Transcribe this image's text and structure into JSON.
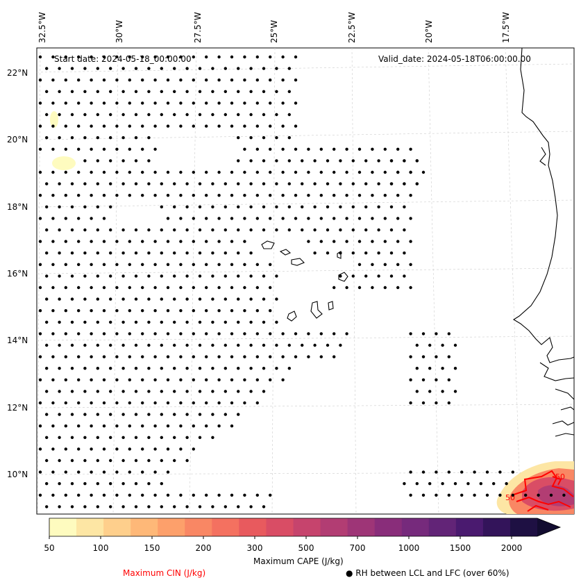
{
  "map": {
    "start_date": "Start date: 2024-05-18_00:00:00",
    "valid_date": "Valid_date: 2024-05-18T06:00:00.00",
    "lon_labels": [
      "32.5°W",
      "30°W",
      "27.5°W",
      "25°W",
      "22.5°W",
      "20°W",
      "17.5°W"
    ],
    "lat_labels": [
      "22°N",
      "20°N",
      "18°N",
      "16°N",
      "14°N",
      "12°N",
      "10°N"
    ],
    "contour_labels": [
      "50",
      "50"
    ]
  },
  "colorbar": {
    "label": "Maximum CAPE (J/kg)",
    "ticks": [
      "50",
      "100",
      "150",
      "200",
      "300",
      "500",
      "700",
      "1000",
      "1500",
      "2000"
    ],
    "colors": [
      "#fefbbf",
      "#fde6a4",
      "#fecf8c",
      "#feb878",
      "#fda06b",
      "#f98764",
      "#f47160",
      "#e85a5e",
      "#d94d65",
      "#c6446d",
      "#b23d73",
      "#9e3577",
      "#892d7a",
      "#762a7c",
      "#622477",
      "#4a1a6f",
      "#33145a",
      "#1e1043"
    ],
    "extend_color": "#120c30"
  },
  "legend": {
    "cin_label": "Maximum CIN (J/kg)",
    "cin_color": "#ff0000",
    "rh_label": "● RH between LCL and LFC (over 60%)"
  }
}
